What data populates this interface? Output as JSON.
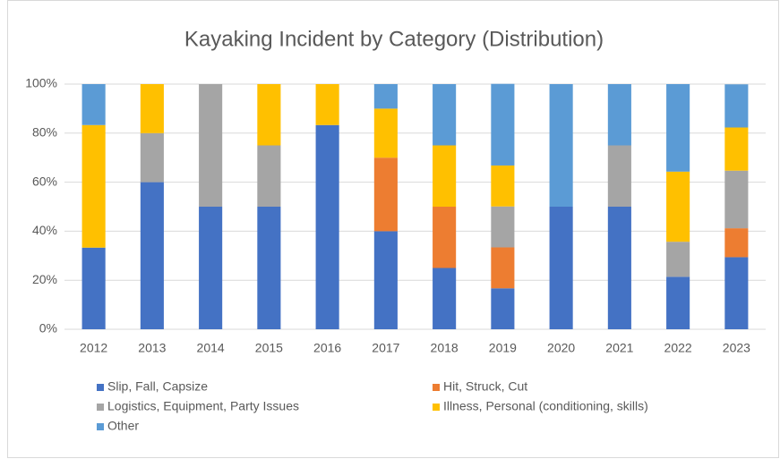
{
  "chart_data": {
    "type": "stacked_bar_100",
    "title": "Kayaking Incident by Category (Distribution)",
    "categories": [
      "2012",
      "2013",
      "2014",
      "2015",
      "2016",
      "2017",
      "2018",
      "2019",
      "2020",
      "2021",
      "2022",
      "2023"
    ],
    "series": [
      {
        "name": "Slip, Fall, Capsize",
        "color": "#4472c4",
        "values": [
          33.3,
          60,
          50,
          50,
          83.3,
          40,
          25,
          16.7,
          50,
          50,
          21.4,
          29.4
        ]
      },
      {
        "name": "Hit, Struck, Cut",
        "color": "#ed7d31",
        "values": [
          0,
          0,
          0,
          0,
          0,
          30,
          25,
          16.7,
          0,
          0,
          0,
          11.8
        ]
      },
      {
        "name": "Logistics, Equipment, Party Issues",
        "color": "#a5a5a5",
        "values": [
          0,
          20,
          50,
          25,
          0,
          0,
          0,
          16.7,
          0,
          25,
          14.3,
          23.5
        ]
      },
      {
        "name": "Illness, Personal (conditioning, skills)",
        "color": "#ffc000",
        "values": [
          50,
          20,
          0,
          25,
          16.7,
          20,
          25,
          16.7,
          0,
          0,
          28.6,
          17.6
        ]
      },
      {
        "name": "Other",
        "color": "#5b9bd5",
        "values": [
          16.7,
          0,
          0,
          0,
          0,
          10,
          25,
          33.3,
          50,
          25,
          35.7,
          17.6
        ]
      }
    ],
    "ylim": [
      0,
      100
    ],
    "yticks": [
      {
        "value": 0,
        "label": "0%"
      },
      {
        "value": 20,
        "label": "20%"
      },
      {
        "value": 40,
        "label": "40%"
      },
      {
        "value": 60,
        "label": "60%"
      },
      {
        "value": 80,
        "label": "80%"
      },
      {
        "value": 100,
        "label": "100%"
      }
    ],
    "grid": true,
    "legend": "bottom"
  }
}
